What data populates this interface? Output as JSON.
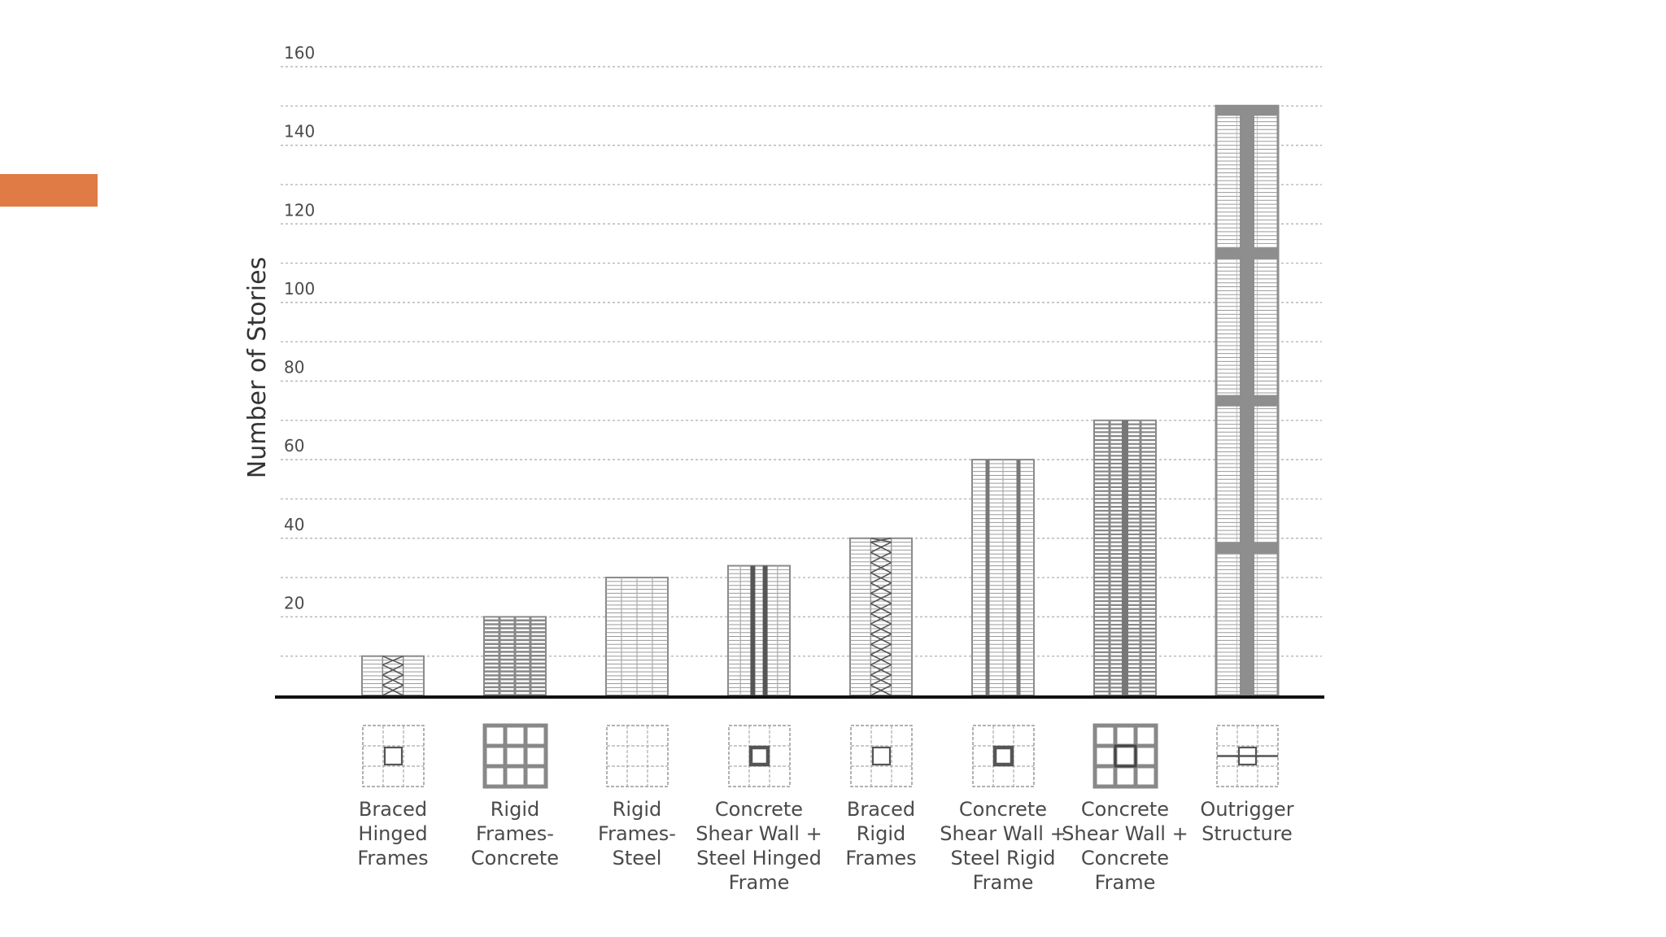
{
  "slide": {
    "accent_color": "#E07B45"
  },
  "chart_data": {
    "type": "bar",
    "title": "",
    "xlabel": "",
    "ylabel": "Number of Stories",
    "ylim": [
      0,
      160
    ],
    "yticks": [
      20,
      40,
      60,
      80,
      100,
      120,
      140,
      160
    ],
    "grid": true,
    "categories": [
      [
        "Braced",
        "Hinged",
        "Frames"
      ],
      [
        "Rigid",
        "Frames-",
        "Concrete"
      ],
      [
        "Rigid",
        "Frames-",
        "Steel"
      ],
      [
        "Concrete",
        "Shear Wall +",
        "Steel Hinged",
        "Frame"
      ],
      [
        "Braced",
        "Rigid",
        "Frames"
      ],
      [
        "Concrete",
        "Shear Wall +",
        "Steel Rigid",
        "Frame"
      ],
      [
        "Concrete",
        "Shear Wall +",
        "Concrete",
        "Frame"
      ],
      [
        "Outrigger",
        "Structure"
      ]
    ],
    "values": [
      10,
      20,
      30,
      33,
      40,
      60,
      70,
      150
    ],
    "patterns": [
      "braced-hinged",
      "rigid-concrete",
      "rigid-steel",
      "shearwall-hinged",
      "braced-rigid",
      "shearwall-rigid",
      "shearwall-concrete",
      "outrigger"
    ],
    "plan_icons": [
      "core-small",
      "grid-3x3-heavy",
      "grid-plain",
      "core-heavy",
      "core-small",
      "core-heavy",
      "grid-3x3-core-heavy",
      "core-outrigger"
    ]
  }
}
